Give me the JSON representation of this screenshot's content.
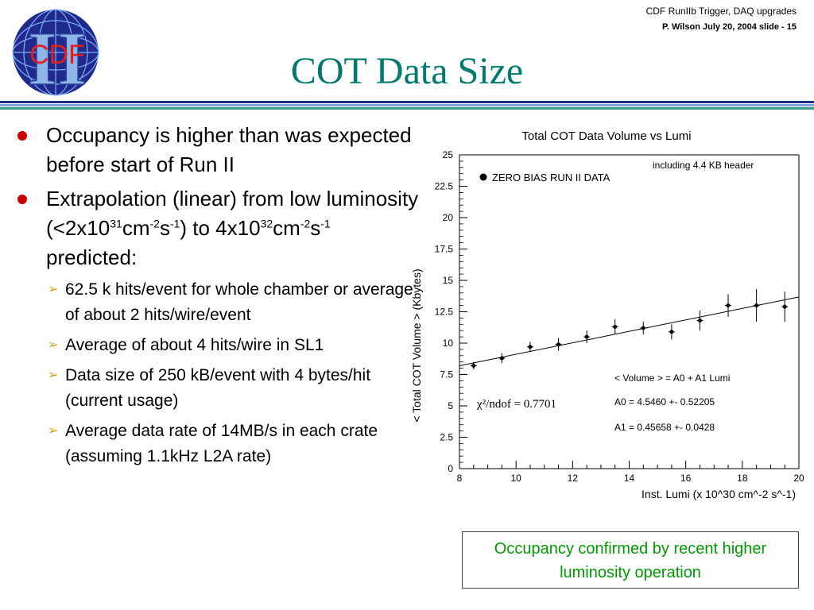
{
  "header": {
    "line1": "CDF RunIIb  Trigger, DAQ upgrades",
    "line2": "P. Wilson   July 20,  2004  slide - 15"
  },
  "logo": {
    "text": "CDF",
    "numeral": "II"
  },
  "title": "COT Data Size",
  "colors": {
    "title": "#007a6e",
    "bullet": "#cc0000",
    "arrow": "#d4a017",
    "note": "#009900",
    "rule_top": "#1f2a8a",
    "rule_mid": "#7fa3d8",
    "rule_bot": "#3a9a8a"
  },
  "bullets": [
    {
      "text": "Occupancy is higher than was expected before start of Run II"
    },
    {
      "pre": "Extrapolation (linear) from low luminosity (<2x10",
      "s1": "31",
      "m1": "cm",
      "s2": "-2",
      "m2": "s",
      "s3": "-1",
      "m3": ") to 4x10",
      "s4": "32",
      "m4": "cm",
      "s5": "-2",
      "m5": "s",
      "s6": "-1",
      "post": " predicted:"
    }
  ],
  "subbullets": [
    "62.5 k hits/event for whole chamber or average of about 2 hits/wire/event",
    "Average of about 4 hits/wire in SL1",
    "Data size of 250 kB/event with 4 bytes/hit (current usage)",
    "Average data rate of 14MB/s in each crate (assuming 1.1kHz L2A rate)"
  ],
  "note": "Occupancy confirmed by recent higher luminosity operation",
  "chart_data": {
    "type": "scatter",
    "title": "Total COT Data Volume vs Lumi",
    "xlabel": "Inst. Lumi (x 10^30 cm^-2 s^-1)",
    "ylabel": "< Total COT Volume > (Kbytes)",
    "xlim": [
      8,
      20
    ],
    "ylim": [
      0,
      25
    ],
    "xticks": [
      8,
      10,
      12,
      14,
      16,
      18,
      20
    ],
    "yticks": [
      0,
      2.5,
      5,
      7.5,
      10,
      12.5,
      15,
      17.5,
      20,
      22.5,
      25
    ],
    "legend": "ZERO BIAS RUN II DATA",
    "annotations": {
      "header_note": "including 4.4 KB header",
      "fit_formula": "< Volume > = A0 + A1 Lumi",
      "chi2": "χ²/ndof = 0.7701",
      "a0": "A0 = 4.5460 +- 0.52205",
      "a1": "A1 = 0.45658 +- 0.0428"
    },
    "series": [
      {
        "x": [
          8.5,
          9.5,
          10.5,
          11.5,
          12.5,
          13.5,
          14.5,
          15.5,
          16.5,
          17.5,
          18.5,
          19.5
        ],
        "y": [
          8.2,
          8.8,
          9.7,
          9.9,
          10.5,
          11.3,
          11.2,
          10.9,
          11.8,
          13.0,
          13.0,
          12.9
        ],
        "yerr": [
          0.3,
          0.4,
          0.4,
          0.5,
          0.5,
          0.6,
          0.5,
          0.6,
          0.8,
          0.9,
          1.3,
          1.2
        ]
      }
    ],
    "fit": {
      "intercept": 4.546,
      "slope": 0.45658
    }
  }
}
